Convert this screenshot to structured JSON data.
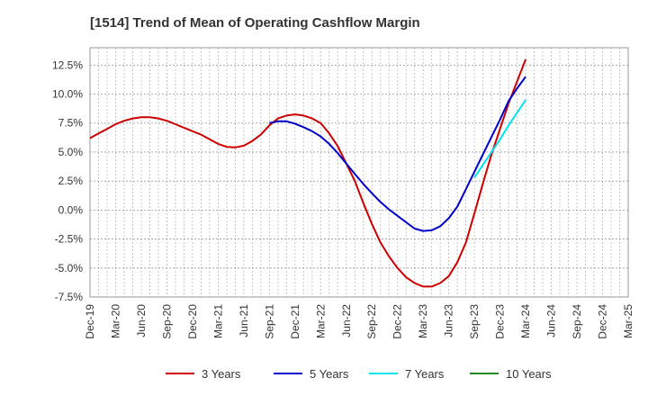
{
  "chart_data": {
    "type": "line",
    "title": "[1514]  Trend of Mean of Operating Cashflow Margin",
    "xlabel": "",
    "ylabel": "",
    "x_ticks": [
      "Dec-19",
      "Mar-20",
      "Jun-20",
      "Sep-20",
      "Dec-20",
      "Mar-21",
      "Jun-21",
      "Sep-21",
      "Dec-21",
      "Mar-22",
      "Jun-22",
      "Sep-22",
      "Dec-22",
      "Mar-23",
      "Jun-23",
      "Sep-23",
      "Dec-23",
      "Mar-24",
      "Jun-24",
      "Sep-24",
      "Dec-24",
      "Mar-25"
    ],
    "y_ticks": [
      12.5,
      10.0,
      7.5,
      5.0,
      2.5,
      0.0,
      -2.5,
      -5.0,
      -7.5
    ],
    "y_tick_labels": [
      "12.5%",
      "10.0%",
      "7.5%",
      "5.0%",
      "2.5%",
      "0.0%",
      "-2.5%",
      "-5.0%",
      "-7.5%"
    ],
    "ylim": [
      -7.5,
      14
    ],
    "grid": true,
    "legend_position": "bottom",
    "series": [
      {
        "name": "3 Years",
        "color": "#cc0000",
        "x": [
          "Dec-19",
          "Jan-20",
          "Feb-20",
          "Mar-20",
          "Apr-20",
          "May-20",
          "Jun-20",
          "Jul-20",
          "Aug-20",
          "Sep-20",
          "Oct-20",
          "Nov-20",
          "Dec-20",
          "Jan-21",
          "Feb-21",
          "Mar-21",
          "Apr-21",
          "May-21",
          "Jun-21",
          "Jul-21",
          "Aug-21",
          "Sep-21",
          "Oct-21",
          "Nov-21",
          "Dec-21",
          "Jan-22",
          "Feb-22",
          "Mar-22",
          "Apr-22",
          "May-22",
          "Jun-22",
          "Jul-22",
          "Aug-22",
          "Sep-22",
          "Oct-22",
          "Nov-22",
          "Dec-22",
          "Jan-23",
          "Feb-23",
          "Mar-23",
          "Apr-23",
          "May-23",
          "Jun-23",
          "Jul-23",
          "Aug-23",
          "Sep-23",
          "Oct-23",
          "Nov-23",
          "Dec-23",
          "Jan-24",
          "Feb-24",
          "Mar-24"
        ],
        "values": [
          6.2,
          6.6,
          7.0,
          7.4,
          7.7,
          7.9,
          8.0,
          8.0,
          7.9,
          7.7,
          7.4,
          7.1,
          6.8,
          6.5,
          6.1,
          5.7,
          5.45,
          5.4,
          5.55,
          5.95,
          6.5,
          7.3,
          7.9,
          8.15,
          8.25,
          8.15,
          7.9,
          7.5,
          6.6,
          5.5,
          4.0,
          2.5,
          0.6,
          -1.2,
          -2.8,
          -4.0,
          -5.0,
          -5.8,
          -6.3,
          -6.6,
          -6.6,
          -6.3,
          -5.7,
          -4.5,
          -2.8,
          -0.3,
          2.3,
          4.8,
          7.0,
          9.2,
          11.1,
          13.0
        ]
      },
      {
        "name": "5 Years",
        "color": "#0000cc",
        "x": [
          "Sep-21",
          "Oct-21",
          "Nov-21",
          "Dec-21",
          "Jan-22",
          "Feb-22",
          "Mar-22",
          "Apr-22",
          "May-22",
          "Jun-22",
          "Jul-22",
          "Aug-22",
          "Sep-22",
          "Oct-22",
          "Nov-22",
          "Dec-22",
          "Jan-23",
          "Feb-23",
          "Mar-23",
          "Apr-23",
          "May-23",
          "Jun-23",
          "Jul-23",
          "Aug-23",
          "Sep-23",
          "Oct-23",
          "Nov-23",
          "Dec-23",
          "Jan-24",
          "Feb-24",
          "Mar-24"
        ],
        "values": [
          7.5,
          7.65,
          7.65,
          7.45,
          7.15,
          6.8,
          6.35,
          5.7,
          4.9,
          4.0,
          3.1,
          2.25,
          1.45,
          0.7,
          0.05,
          -0.5,
          -1.05,
          -1.6,
          -1.8,
          -1.75,
          -1.4,
          -0.7,
          0.3,
          1.8,
          3.3,
          4.8,
          6.3,
          7.8,
          9.4,
          10.5,
          11.5
        ]
      },
      {
        "name": "7 Years",
        "color": "#00e5ee",
        "x": [
          "Sep-23",
          "Oct-23",
          "Nov-23",
          "Dec-23",
          "Jan-24",
          "Feb-24",
          "Mar-24"
        ],
        "values": [
          2.8,
          3.9,
          5.0,
          6.1,
          7.3,
          8.4,
          9.5
        ]
      },
      {
        "name": "10 Years",
        "color": "#228b22",
        "x": [],
        "values": []
      }
    ]
  }
}
